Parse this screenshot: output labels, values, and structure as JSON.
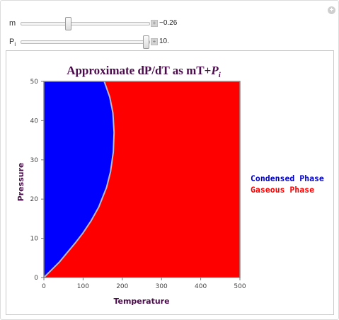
{
  "controls": {
    "m": {
      "label": "m",
      "value": "−0.26",
      "position_fraction": 0.36
    },
    "pi": {
      "label_main": "P",
      "label_sub": "i",
      "value": "10.",
      "position_fraction": 1.0
    }
  },
  "chart_data": {
    "type": "area",
    "title": "Approximate dP/dT as mT+",
    "title_var_main": "P",
    "title_var_sub": "i",
    "xlabel": "Temperature",
    "ylabel": "Pressure",
    "xlim": [
      0,
      500
    ],
    "ylim": [
      0,
      50
    ],
    "xticks": [
      "0",
      "100",
      "200",
      "300",
      "400",
      "500"
    ],
    "yticks": [
      "0",
      "10",
      "20",
      "30",
      "40",
      "50"
    ],
    "boundary_points": [
      [
        0,
        0
      ],
      [
        20,
        2
      ],
      [
        40,
        4
      ],
      [
        60,
        6.4
      ],
      [
        80,
        8.8
      ],
      [
        100,
        11.4
      ],
      [
        120,
        14.4
      ],
      [
        140,
        18
      ],
      [
        160,
        23
      ],
      [
        170,
        27
      ],
      [
        177,
        32
      ],
      [
        179,
        37
      ],
      [
        176,
        42
      ],
      [
        168,
        46
      ],
      [
        154,
        50
      ]
    ],
    "series": [
      {
        "name": "Condensed Phase",
        "color": "#0000ff"
      },
      {
        "name": "Gaseous Phase",
        "color": "#ff0000"
      }
    ],
    "boundary_color": "#b8b8d0",
    "legend_position": "right"
  }
}
